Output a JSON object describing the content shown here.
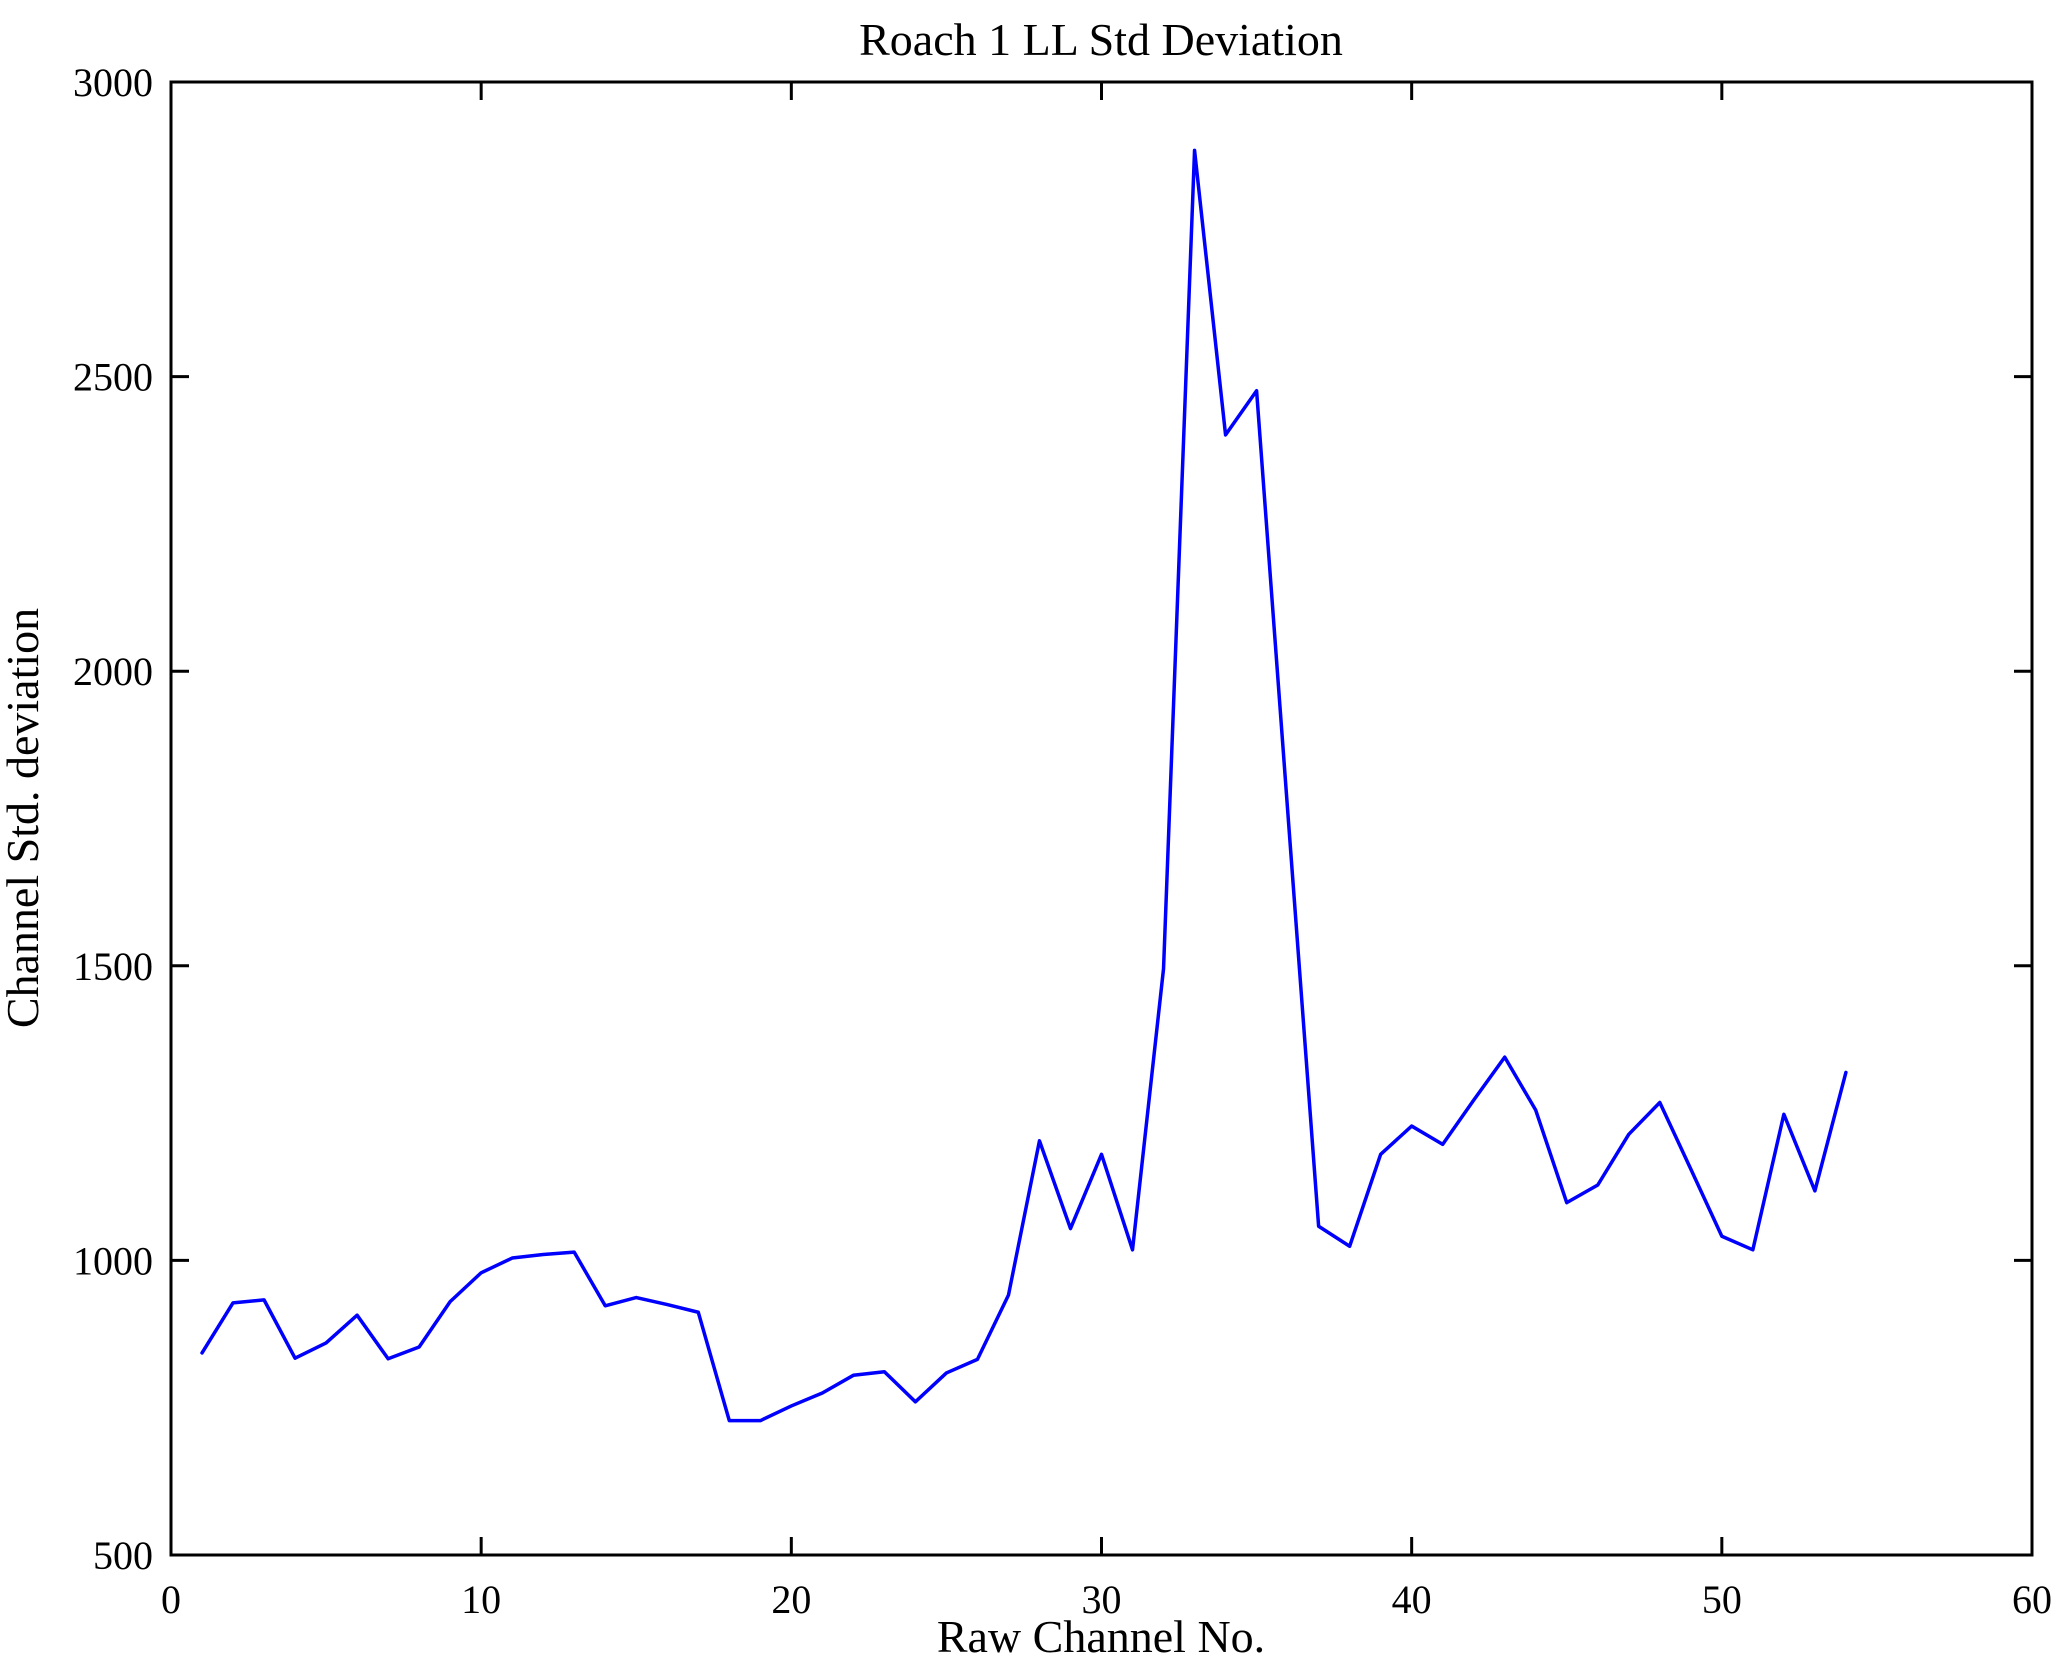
{
  "figure": {
    "background": "#ffffff",
    "frame_color": "#000000"
  },
  "chart_data": {
    "type": "line",
    "title": "Roach 1 LL Std Deviation",
    "xlabel": "Raw Channel No.",
    "ylabel": "Channel Std. deviation",
    "xlim": [
      0,
      60
    ],
    "ylim": [
      500,
      3000
    ],
    "x_ticks": [
      0,
      10,
      20,
      30,
      40,
      50,
      60
    ],
    "y_ticks": [
      500,
      1000,
      1500,
      2000,
      2500,
      3000
    ],
    "grid": false,
    "legend": "none",
    "line_color": "#0000ff",
    "line_width": 3.5,
    "series": [
      {
        "name": "Channel Std. deviation",
        "x": [
          1,
          2,
          3,
          4,
          5,
          6,
          7,
          8,
          9,
          10,
          11,
          12,
          13,
          14,
          15,
          16,
          17,
          18,
          19,
          20,
          21,
          22,
          23,
          24,
          25,
          26,
          27,
          28,
          29,
          30,
          31,
          32,
          33,
          34,
          35,
          36,
          37,
          38,
          39,
          40,
          41,
          42,
          43,
          44,
          45,
          46,
          47,
          48,
          49,
          50,
          51,
          52,
          53,
          54
        ],
        "values": [
          843,
          928,
          933,
          834,
          860,
          907,
          833,
          853,
          930,
          979,
          1004,
          1010,
          1014,
          923,
          937,
          925,
          912,
          728,
          728,
          753,
          775,
          805,
          811,
          760,
          809,
          832,
          941,
          1203,
          1054,
          1180,
          1018,
          1495,
          2884,
          2401,
          2476,
          1765,
          1058,
          1024,
          1180,
          1228,
          1197,
          1272,
          1345,
          1255,
          1098,
          1128,
          1214,
          1268,
          1155,
          1041,
          1018,
          1248,
          1118,
          1319
        ]
      }
    ]
  }
}
